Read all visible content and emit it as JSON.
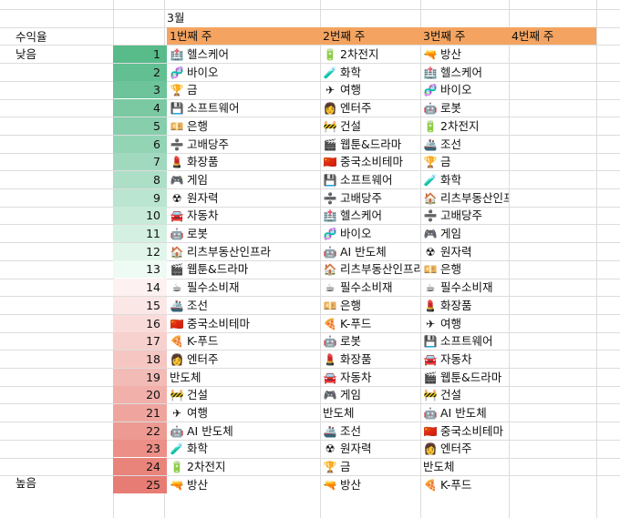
{
  "month": "3월",
  "returns_label": "수익율",
  "low_label": "낮음",
  "high_label": "높음",
  "weeks": [
    "1번째 주",
    "2번째 주",
    "3번째 주",
    "4번째 주"
  ],
  "header_color": "#f4a460",
  "icons": {
    "헬스케어": "🏥",
    "바이오": "🧬",
    "금": "🏆",
    "소프트웨어": "💾",
    "은행": "💴",
    "고배당주": "➗",
    "화장품": "💄",
    "게임": "🎮",
    "원자력": "☢",
    "자동차": "🚘",
    "로봇": "🤖",
    "리츠부동산인프라": "🏠",
    "웹툰&드라마": "🎬",
    "필수소비재": "☕",
    "조선": "🚢",
    "중국소비테마": "🇨🇳",
    "K-푸드": "🍕",
    "엔터주": "👩",
    "반도체": "",
    "건설": "🚧",
    "여행": "✈",
    "AI 반도체": "🤖",
    "화학": "🧪",
    "2차전지": "🔋",
    "방산": "🔫"
  },
  "rows": [
    {
      "rank": 1,
      "color": "#57bb8a",
      "week1": "헬스케어",
      "week2": "2차전지",
      "week3": "방산"
    },
    {
      "rank": 2,
      "color": "#62bf92",
      "week1": "바이오",
      "week2": "화학",
      "week3": "헬스케어"
    },
    {
      "rank": 3,
      "color": "#6dc39a",
      "week1": "금",
      "week2": "여행",
      "week3": "바이오"
    },
    {
      "rank": 4,
      "color": "#7ac9a3",
      "week1": "소프트웨어",
      "week2": "엔터주",
      "week3": "로봇"
    },
    {
      "rank": 5,
      "color": "#86ceac",
      "week1": "은행",
      "week2": "건설",
      "week3": "2차전지"
    },
    {
      "rank": 6,
      "color": "#93d4b5",
      "week1": "고배당주",
      "week2": "웹툰&드라마",
      "week3": "조선"
    },
    {
      "rank": 7,
      "color": "#a0d9be",
      "week1": "화장품",
      "week2": "중국소비테마",
      "week3": "금"
    },
    {
      "rank": 8,
      "color": "#addfc7",
      "week1": "게임",
      "week2": "소프트웨어",
      "week3": "화학"
    },
    {
      "rank": 9,
      "color": "#bae5d0",
      "week1": "원자력",
      "week2": "고배당주",
      "week3": "리츠부동산인프라"
    },
    {
      "rank": 10,
      "color": "#c7ead9",
      "week1": "자동차",
      "week2": "헬스케어",
      "week3": "고배당주"
    },
    {
      "rank": 11,
      "color": "#d4f0e2",
      "week1": "로봇",
      "week2": "바이오",
      "week3": "게임"
    },
    {
      "rank": 12,
      "color": "#e1f5eb",
      "week1": "리츠부동산인프라",
      "week2": "AI 반도체",
      "week3": "원자력"
    },
    {
      "rank": 13,
      "color": "#eefaf4",
      "week1": "웹툰&드라마",
      "week2": "리츠부동산인프라",
      "week3": "은행"
    },
    {
      "rank": 14,
      "color": "#fdf2f1",
      "week1": "필수소비재",
      "week2": "필수소비재",
      "week3": "필수소비재"
    },
    {
      "rank": 15,
      "color": "#fbe7e5",
      "week1": "조선",
      "week2": "은행",
      "week3": "화장품"
    },
    {
      "rank": 16,
      "color": "#f9dcd9",
      "week1": "중국소비테마",
      "week2": "K-푸드",
      "week3": "여행"
    },
    {
      "rank": 17,
      "color": "#f7d1cd",
      "week1": "K-푸드",
      "week2": "로봇",
      "week3": "소프트웨어"
    },
    {
      "rank": 18,
      "color": "#f5c6c2",
      "week1": "엔터주",
      "week2": "화장품",
      "week3": "자동차"
    },
    {
      "rank": 19,
      "color": "#f3bbb6",
      "week1": "반도체",
      "week2": "자동차",
      "week3": "웹툰&드라마"
    },
    {
      "rank": 20,
      "color": "#f1b0aa",
      "week1": "건설",
      "week2": "게임",
      "week3": "건설"
    },
    {
      "rank": 21,
      "color": "#efa59e",
      "week1": "여행",
      "week2": "반도체",
      "week3": "AI 반도체"
    },
    {
      "rank": 22,
      "color": "#ed9a92",
      "week1": "AI 반도체",
      "week2": "조선",
      "week3": "중국소비테마"
    },
    {
      "rank": 23,
      "color": "#eb8f87",
      "week1": "화학",
      "week2": "원자력",
      "week3": "엔터주"
    },
    {
      "rank": 24,
      "color": "#e9847b",
      "week1": "2차전지",
      "week2": "금",
      "week3": "반도체"
    },
    {
      "rank": 25,
      "color": "#e67c73",
      "week1": "방산",
      "week2": "방산",
      "week3": "K-푸드"
    }
  ]
}
